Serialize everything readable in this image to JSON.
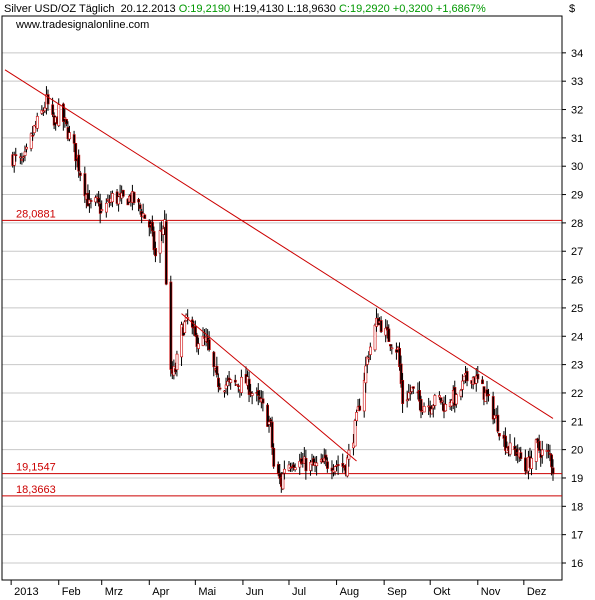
{
  "header": {
    "instrument": "Silver USD/OZ Täglich",
    "date": "20.12.2013",
    "open": "O:19,2190",
    "high": "H:19,4130",
    "low": "L:18,9630",
    "close": "C:19,2920 +0,3200 +1,6867%",
    "url": "www.tradesignalonline.com",
    "currency_label": "$"
  },
  "colors": {
    "up_candle": "#ffffff",
    "down_candle": "#000000",
    "accent_red": "#cc0000",
    "grid": "#c8c8c8",
    "green": "#009900"
  },
  "chart_data": {
    "type": "candlestick",
    "y_ticks": [
      16,
      17,
      18,
      19,
      20,
      21,
      22,
      23,
      24,
      25,
      26,
      27,
      28,
      29,
      30,
      31,
      32,
      33,
      34
    ],
    "x_ticks": [
      "2013",
      "Feb",
      "Mrz",
      "Apr",
      "Mai",
      "Jun",
      "Jul",
      "Aug",
      "Sep",
      "Okt",
      "Nov",
      "Dez"
    ],
    "ylim": [
      15.4,
      35.3
    ],
    "grid": "horizontal",
    "horizontal_lines": [
      {
        "label": "28,0881",
        "value": 28.0881
      },
      {
        "label": "19,1547",
        "value": 19.1547
      },
      {
        "label": "18,3663",
        "value": 18.3663
      }
    ],
    "trendlines": [
      {
        "from": [
          "2012-12-28",
          33.4
        ],
        "to": [
          "2013-12-20",
          21.1
        ]
      },
      {
        "from": [
          "2013-04-22",
          24.8
        ],
        "to": [
          "2013-08-14",
          19.6
        ]
      }
    ],
    "price_path": [
      [
        "2013-01-02",
        30.3
      ],
      [
        "2013-01-09",
        30.1
      ],
      [
        "2013-01-16",
        31.3
      ],
      [
        "2013-01-22",
        32.0
      ],
      [
        "2013-01-24",
        32.3
      ],
      [
        "2013-01-29",
        31.4
      ],
      [
        "2013-02-01",
        31.9
      ],
      [
        "2013-02-05",
        31.5
      ],
      [
        "2013-02-11",
        30.6
      ],
      [
        "2013-02-15",
        29.8
      ],
      [
        "2013-02-21",
        28.6
      ],
      [
        "2013-02-26",
        28.7
      ],
      [
        "2013-03-01",
        28.4
      ],
      [
        "2013-03-08",
        28.9
      ],
      [
        "2013-03-14",
        28.8
      ],
      [
        "2013-03-20",
        28.9
      ],
      [
        "2013-03-26",
        28.5
      ],
      [
        "2013-04-02",
        27.8
      ],
      [
        "2013-04-05",
        26.8
      ],
      [
        "2013-04-08",
        27.6
      ],
      [
        "2013-04-11",
        28.0
      ],
      [
        "2013-04-12",
        26.0
      ],
      [
        "2013-04-15",
        22.6
      ],
      [
        "2013-04-18",
        22.8
      ],
      [
        "2013-04-22",
        24.2
      ],
      [
        "2013-04-26",
        24.6
      ],
      [
        "2013-05-01",
        23.9
      ],
      [
        "2013-05-08",
        23.8
      ],
      [
        "2013-05-15",
        22.4
      ],
      [
        "2013-05-21",
        22.3
      ],
      [
        "2013-05-28",
        22.3
      ],
      [
        "2013-06-03",
        22.4
      ],
      [
        "2013-06-07",
        22.0
      ],
      [
        "2013-06-13",
        21.6
      ],
      [
        "2013-06-19",
        20.8
      ],
      [
        "2013-06-21",
        19.4
      ],
      [
        "2013-06-26",
        18.8
      ],
      [
        "2013-06-28",
        19.4
      ],
      [
        "2013-07-03",
        19.6
      ],
      [
        "2013-07-10",
        19.5
      ],
      [
        "2013-07-17",
        19.4
      ],
      [
        "2013-07-24",
        19.5
      ],
      [
        "2013-07-31",
        19.5
      ],
      [
        "2013-08-07",
        19.4
      ],
      [
        "2013-08-12",
        20.5
      ],
      [
        "2013-08-16",
        21.6
      ],
      [
        "2013-08-21",
        23.2
      ],
      [
        "2013-08-26",
        24.3
      ],
      [
        "2013-08-28",
        24.6
      ],
      [
        "2013-09-03",
        24.0
      ],
      [
        "2013-09-06",
        23.8
      ],
      [
        "2013-09-10",
        23.5
      ],
      [
        "2013-09-13",
        21.7
      ],
      [
        "2013-09-19",
        22.1
      ],
      [
        "2013-09-25",
        21.6
      ],
      [
        "2013-10-01",
        21.6
      ],
      [
        "2013-10-07",
        21.8
      ],
      [
        "2013-10-11",
        21.5
      ],
      [
        "2013-10-15",
        21.9
      ],
      [
        "2013-10-18",
        21.7
      ],
      [
        "2013-10-23",
        22.4
      ],
      [
        "2013-10-28",
        22.6
      ],
      [
        "2013-11-01",
        22.4
      ],
      [
        "2013-11-06",
        21.9
      ],
      [
        "2013-11-12",
        21.2
      ],
      [
        "2013-11-18",
        20.3
      ],
      [
        "2013-11-22",
        20.0
      ],
      [
        "2013-11-27",
        19.9
      ],
      [
        "2013-12-02",
        19.3
      ],
      [
        "2013-12-05",
        19.6
      ],
      [
        "2013-12-09",
        20.1
      ],
      [
        "2013-12-13",
        19.9
      ],
      [
        "2013-12-18",
        19.8
      ],
      [
        "2013-12-20",
        19.3
      ]
    ]
  }
}
